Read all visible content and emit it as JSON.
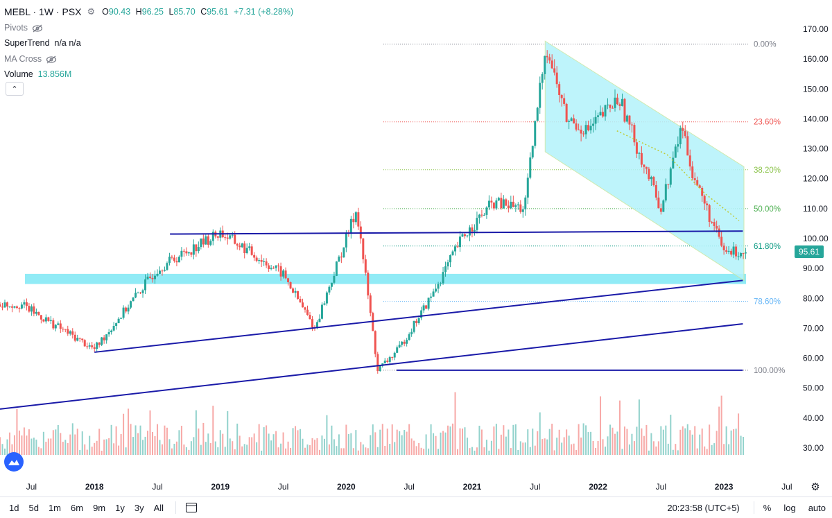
{
  "legend": {
    "symbol": "MEBL · 1W · PSX",
    "open_label": "O",
    "open": "90.43",
    "high_label": "H",
    "high": "96.25",
    "low_label": "L",
    "low": "85.70",
    "close_label": "C",
    "close": "95.61",
    "change": "+7.31 (+8.28%)",
    "indicators": [
      {
        "label": "Pivots",
        "value": ""
      },
      {
        "label": "SuperTrend",
        "value": "n/a n/a"
      },
      {
        "label": "MA Cross",
        "value": ""
      },
      {
        "label": "Volume",
        "value": "13.856M"
      }
    ]
  },
  "bottombar": {
    "ranges": [
      "1d",
      "5d",
      "1m",
      "6m",
      "9m",
      "1y",
      "3y",
      "All"
    ],
    "time": "20:23:58 (UTC+5)",
    "options": [
      "%",
      "log",
      "auto"
    ]
  },
  "colors": {
    "up": "#26a69a",
    "down": "#ef5350",
    "trendline": "#1a1aa8",
    "zone": "#7ee8f5",
    "channel": "#b3f3fb",
    "price_label": "#26a69a"
  },
  "chart_data": {
    "type": "candlestick",
    "symbol": "MEBL",
    "timeframe": "1W",
    "exchange": "PSX",
    "price_axis": {
      "ticks": [
        "170.00",
        "160.00",
        "150.00",
        "140.00",
        "130.00",
        "120.00",
        "110.00",
        "100.00",
        "90.00",
        "80.00",
        "70.00",
        "60.00",
        "50.00",
        "40.00",
        "30.00"
      ]
    },
    "time_axis": {
      "ticks": [
        "Jul",
        "2018",
        "Jul",
        "2019",
        "Jul",
        "2020",
        "Jul",
        "2021",
        "Jul",
        "2022",
        "Jul",
        "2023",
        "Jul"
      ]
    },
    "last_price": "95.61",
    "fibonacci_levels": [
      {
        "label": "0.00%",
        "price": 165,
        "color": "#787b86"
      },
      {
        "label": "23.60%",
        "price": 139,
        "color": "#ef5350"
      },
      {
        "label": "38.20%",
        "price": 123,
        "color": "#8bc34a"
      },
      {
        "label": "50.00%",
        "price": 110,
        "color": "#4caf50"
      },
      {
        "label": "61.80%",
        "price": 97.5,
        "color": "#089981"
      },
      {
        "label": "78.60%",
        "price": 79,
        "color": "#64b5f6"
      },
      {
        "label": "100.00%",
        "price": 56,
        "color": "#787b86"
      }
    ],
    "key_points": [
      {
        "date": "2017-06",
        "price": 78
      },
      {
        "date": "2018-01",
        "price": 63
      },
      {
        "date": "2018-07",
        "price": 90
      },
      {
        "date": "2019-01",
        "price": 102
      },
      {
        "date": "2019-07",
        "price": 88
      },
      {
        "date": "2019-10",
        "price": 70
      },
      {
        "date": "2020-02",
        "price": 110
      },
      {
        "date": "2020-04",
        "price": 56
      },
      {
        "date": "2020-06",
        "price": 63
      },
      {
        "date": "2020-09",
        "price": 80
      },
      {
        "date": "2020-12",
        "price": 100
      },
      {
        "date": "2021-03",
        "price": 112
      },
      {
        "date": "2021-06",
        "price": 110
      },
      {
        "date": "2021-08",
        "price": 165
      },
      {
        "date": "2021-10",
        "price": 140
      },
      {
        "date": "2021-12",
        "price": 136
      },
      {
        "date": "2022-03",
        "price": 147
      },
      {
        "date": "2022-05",
        "price": 128
      },
      {
        "date": "2022-07",
        "price": 110
      },
      {
        "date": "2022-09",
        "price": 138
      },
      {
        "date": "2022-10",
        "price": 122
      },
      {
        "date": "2022-12",
        "price": 104
      },
      {
        "date": "2023-01",
        "price": 95.61
      }
    ]
  }
}
